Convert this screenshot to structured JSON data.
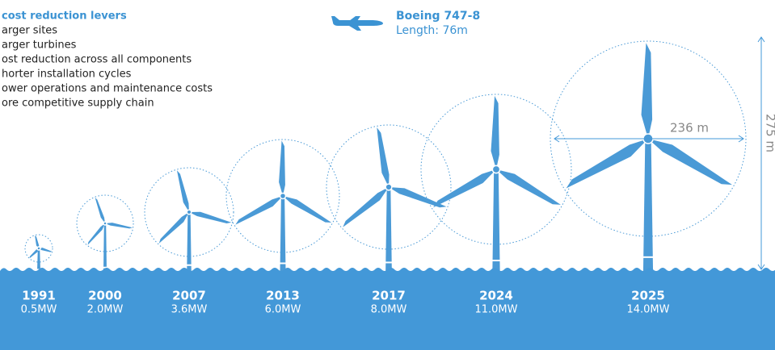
{
  "levers": {
    "title": "cost reduction levers",
    "items": [
      "arger sites",
      "arger turbines",
      "ost reduction across all components",
      "horter installation cycles",
      "ower operations and maintenance costs",
      "ore competitive supply chain"
    ]
  },
  "boeing": {
    "name": "Boeing 747-8",
    "length": "Length: 76m"
  },
  "dimensions": {
    "rotor": "236 m",
    "height": "275 m"
  },
  "turbines": [
    {
      "year": "1991",
      "capacity": "0.5MW"
    },
    {
      "year": "2000",
      "capacity": "2.0MW"
    },
    {
      "year": "2007",
      "capacity": "3.6MW"
    },
    {
      "year": "2013",
      "capacity": "6.0MW"
    },
    {
      "year": "2017",
      "capacity": "8.0MW"
    },
    {
      "year": "2024",
      "capacity": "11.0MW"
    },
    {
      "year": "2025",
      "capacity": "14.0MW"
    }
  ]
}
